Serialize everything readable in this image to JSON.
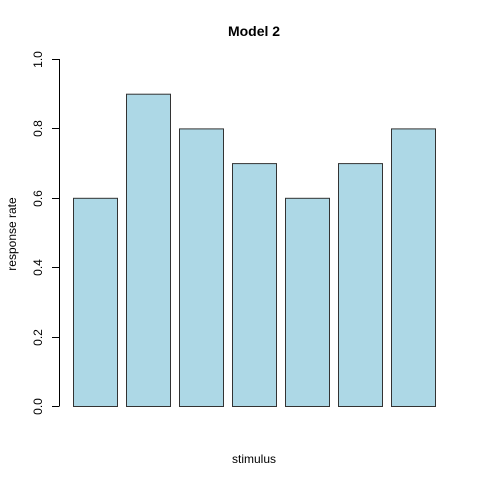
{
  "chart_data": {
    "type": "bar",
    "title": "Model 2",
    "xlabel": "stimulus",
    "ylabel": "response rate",
    "categories": [
      "",
      "",
      "",
      "",
      "",
      "",
      ""
    ],
    "values": [
      0.6,
      0.9,
      0.8,
      0.7,
      0.6,
      0.7,
      0.8
    ],
    "ylim": [
      0,
      1.0
    ],
    "yticks": [
      0.0,
      0.2,
      0.4,
      0.6,
      0.8,
      1.0
    ],
    "ytick_labels": [
      "0.0",
      "0.2",
      "0.4",
      "0.6",
      "0.8",
      "1.0"
    ],
    "bar_color": "#add8e6",
    "bar_edge_color": "#333333",
    "grid": false,
    "legend": "none"
  }
}
